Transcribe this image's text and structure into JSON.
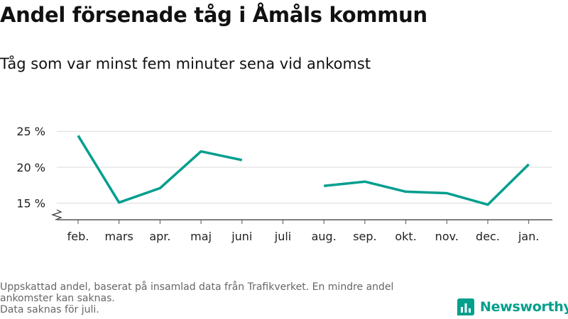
{
  "header": {
    "title": "Andel försenade tåg i Åmåls kommun",
    "subtitle": "Tåg som var minst fem minuter sena vid ankomst"
  },
  "chart_data": {
    "type": "line",
    "title": "Andel försenade tåg i Åmåls kommun",
    "subtitle": "Tåg som var minst fem minuter sena vid ankomst",
    "xlabel": "",
    "ylabel": "",
    "categories": [
      "feb.",
      "mars",
      "apr.",
      "maj",
      "juni",
      "juli",
      "aug.",
      "sep.",
      "okt.",
      "nov.",
      "dec.",
      "jan."
    ],
    "series": [
      {
        "values": [
          24.4,
          15.1,
          17.1,
          22.2,
          21.0,
          null,
          17.4,
          18.0,
          16.6,
          16.4,
          14.8,
          20.4
        ]
      }
    ],
    "y_ticks": [
      {
        "value": 15,
        "label": "15 %"
      },
      {
        "value": 20,
        "label": "20 %"
      },
      {
        "value": 25,
        "label": "25 %"
      }
    ],
    "ylim": [
      12.7,
      26.5
    ],
    "y_axis_break": true,
    "grid": "horizontal",
    "legend": "none",
    "line_color": "#009e8e"
  },
  "footer": {
    "notes": [
      "Uppskattad andel, baserat på insamlad data från Trafikverket. En mindre andel",
      "ankomster kan saknas.",
      "Data saknas för juli."
    ],
    "brand": "Newsworthy",
    "brand_icon": "bar-chart-icon",
    "brand_color": "#00a08c"
  }
}
